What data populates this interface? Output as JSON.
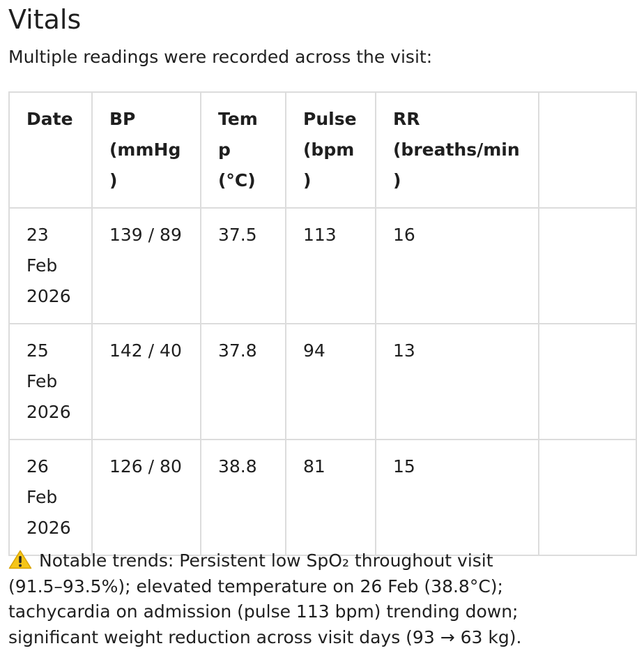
{
  "heading": "Vitals",
  "intro": "Multiple readings were recorded across the visit:",
  "table": {
    "headers": {
      "date": "Date",
      "bp": "BP (mmHg)",
      "temp": "Temp (°C)",
      "pulse": "Pulse (bpm)",
      "rr": "RR (breaths/min)",
      "extra": ""
    },
    "rows": [
      {
        "date": "23 Feb 2026",
        "bp": "139 / 89",
        "temp": "37.5",
        "pulse": "113",
        "rr": "16",
        "extra": ""
      },
      {
        "date": "25 Feb 2026",
        "bp": "142 / 40",
        "temp": "37.8",
        "pulse": "94",
        "rr": "13",
        "extra": ""
      },
      {
        "date": "26 Feb 2026",
        "bp": "126 / 80",
        "temp": "38.8",
        "pulse": "81",
        "rr": "15",
        "extra": ""
      }
    ]
  },
  "note": {
    "icon": "warning-icon",
    "icon_color": "#f5c518",
    "text": "Notable trends: Persistent low SpO₂ throughout visit (91.5–93.5%); elevated temperature on 26 Feb (38.8°C); tachycardia on admission (pulse 113 bpm) trending down; significant weight reduction across visit days (93 → 63 kg)."
  }
}
